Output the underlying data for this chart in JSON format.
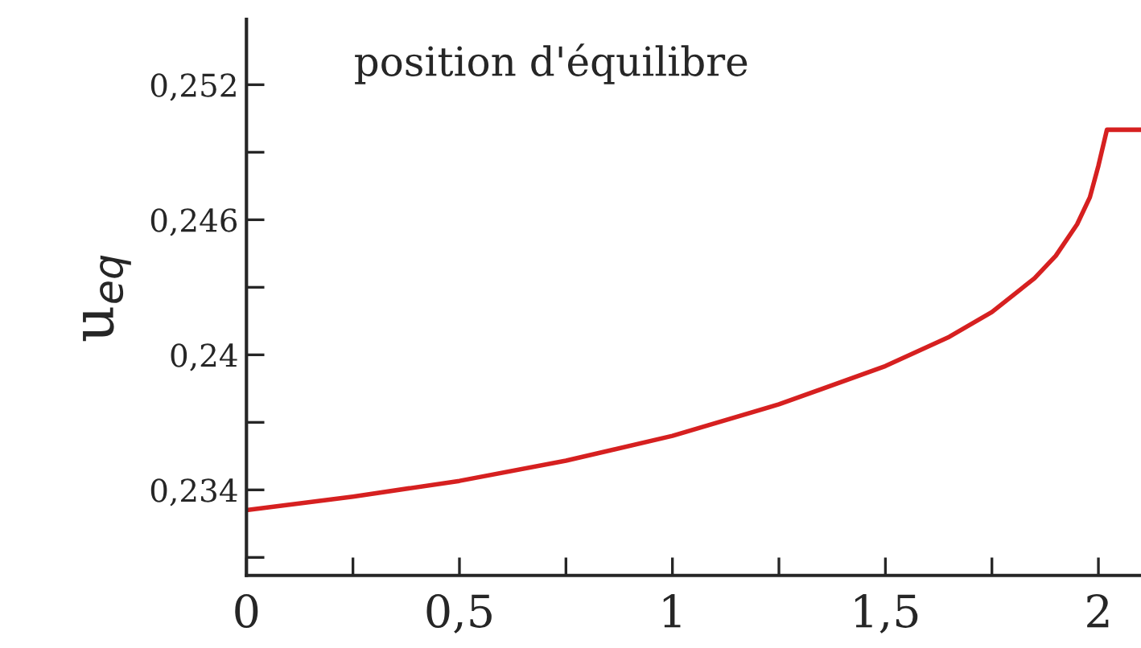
{
  "chart_data": {
    "type": "line",
    "annotations": [
      "position d'équilibre"
    ],
    "ylabel": "u$_{eq}$",
    "x": [
      0,
      0.25,
      0.5,
      0.75,
      1,
      1.25,
      1.5,
      1.65,
      1.75,
      1.85,
      1.9,
      1.95,
      1.98,
      2.0,
      2.02,
      2.1
    ],
    "series": [
      {
        "color": "#d62020",
        "values": [
          0.2331,
          0.2337,
          0.2344,
          0.2353,
          0.2364,
          0.2378,
          0.2395,
          0.2408,
          0.2419,
          0.2434,
          0.2444,
          0.2458,
          0.247,
          0.2484,
          0.25,
          0.25
        ]
      }
    ],
    "xlim": [
      0,
      2.1
    ],
    "ylim": [
      0.2302,
      0.2549
    ],
    "xticks": [
      {
        "value": 0,
        "label": "0"
      },
      {
        "value": 0.25,
        "label": null
      },
      {
        "value": 0.5,
        "label": "0,5"
      },
      {
        "value": 0.75,
        "label": null
      },
      {
        "value": 1,
        "label": "1"
      },
      {
        "value": 1.25,
        "label": null
      },
      {
        "value": 1.5,
        "label": "1,5"
      },
      {
        "value": 1.75,
        "label": null
      },
      {
        "value": 2,
        "label": "2"
      }
    ],
    "yticks": [
      {
        "value": 0.231,
        "label": null
      },
      {
        "value": 0.234,
        "label": "0,234"
      },
      {
        "value": 0.237,
        "label": null
      },
      {
        "value": 0.24,
        "label": "0,24"
      },
      {
        "value": 0.243,
        "label": null
      },
      {
        "value": 0.246,
        "label": "0,246"
      },
      {
        "value": 0.249,
        "label": null
      },
      {
        "value": 0.252,
        "label": "0,252"
      }
    ],
    "grid": false,
    "legend": false,
    "marker": "none",
    "line_style": "solid"
  }
}
